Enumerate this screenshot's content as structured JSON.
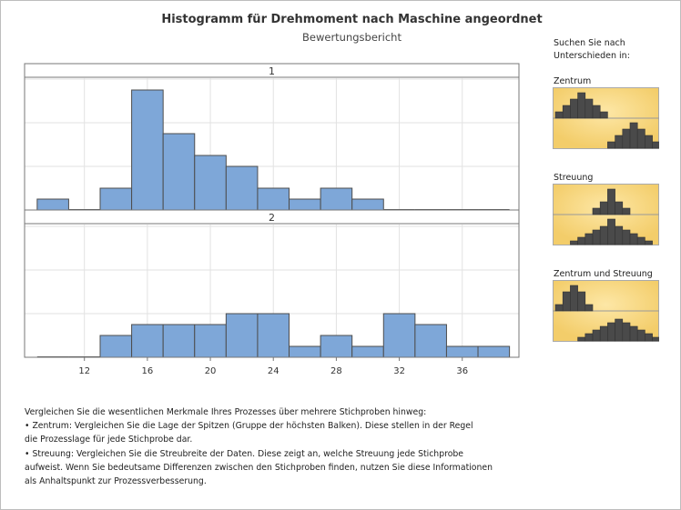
{
  "title": "Histogramm für Drehmoment nach Maschine angeordnet",
  "subtitle": "Bewertungsbericht",
  "chart_data": {
    "type": "bar",
    "title": "Histogramm für Drehmoment nach Maschine angeordnet",
    "subtitle": "Bewertungsbericht",
    "bin_edges": [
      9,
      11,
      13,
      15,
      17,
      19,
      21,
      23,
      25,
      27,
      29,
      31,
      33,
      35,
      37,
      39
    ],
    "xticks": [
      12,
      16,
      20,
      24,
      28,
      32,
      36
    ],
    "xlim": [
      8.2,
      39.6
    ],
    "ylim": [
      0,
      12
    ],
    "grid": true,
    "bar_color": "#7ea7d8",
    "panels": [
      {
        "label": "1",
        "counts": [
          1,
          0,
          2,
          11,
          7,
          5,
          4,
          2,
          1,
          2,
          1,
          0,
          0,
          0,
          0
        ]
      },
      {
        "label": "2",
        "counts": [
          0,
          0,
          2,
          3,
          3,
          3,
          4,
          4,
          1,
          2,
          1,
          4,
          3,
          1,
          1
        ]
      }
    ]
  },
  "sidebar": {
    "heading_line1": "Suchen Sie nach",
    "heading_line2": "Unterschieden in:",
    "items": [
      {
        "label": "Zentrum",
        "top": [
          1,
          2,
          3,
          4,
          3,
          2,
          1
        ],
        "top_offset": 0,
        "bottom": [
          1,
          2,
          3,
          4,
          3,
          2,
          1
        ],
        "bottom_offset": 7
      },
      {
        "label": "Streuung",
        "top": [
          1,
          2,
          4,
          2,
          1
        ],
        "top_offset": 5,
        "bottom": [
          1,
          2,
          3,
          4,
          5,
          7,
          5,
          4,
          3,
          2,
          1
        ],
        "bottom_offset": 2
      },
      {
        "label": "Zentrum und Streuung",
        "top": [
          1,
          3,
          4,
          3,
          1
        ],
        "top_offset": 0,
        "bottom": [
          1,
          2,
          3,
          4,
          5,
          6,
          5,
          4,
          3,
          2,
          1
        ],
        "bottom_offset": 3
      }
    ],
    "thumb_color": "#f3cd6a",
    "bar_color": "#4a4a4a"
  },
  "note": {
    "lines": [
      "Vergleichen Sie die wesentlichen Merkmale Ihres Prozesses über mehrere Stichproben hinweg:",
      "•  Zentrum: Vergleichen Sie die Lage der Spitzen (Gruppe der höchsten Balken). Diese stellen in der Regel",
      "die Prozesslage für jede Stichprobe dar.",
      "•  Streuung: Vergleichen Sie die Streubreite der Daten. Diese zeigt an, welche Streuung jede Stichprobe",
      "aufweist. Wenn Sie bedeutsame Differenzen zwischen den Stichproben finden, nutzen Sie diese Informationen",
      "als Anhaltspunkt zur Prozessverbesserung."
    ]
  }
}
